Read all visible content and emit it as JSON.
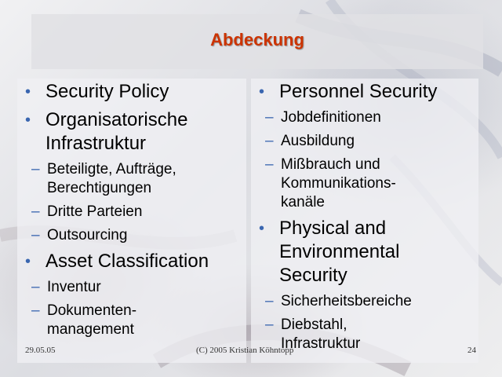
{
  "slide": {
    "title": "Abdeckung",
    "colors": {
      "title": "#cc3300",
      "bullet": "#3a66b0"
    }
  },
  "left_column": [
    {
      "text": "Security Policy",
      "subitems": []
    },
    {
      "text": "Organisatorische\nInfrastruktur",
      "subitems": [
        "Beteiligte, Aufträge,\nBerechtigungen",
        "Dritte Parteien",
        "Outsourcing"
      ]
    },
    {
      "text": "Asset Classification",
      "subitems": [
        "Inventur",
        "Dokumenten-\nmanagement"
      ]
    }
  ],
  "right_column": [
    {
      "text": "Personnel Security",
      "subitems": [
        "Jobdefinitionen",
        "Ausbildung",
        "Mißbrauch und\nKommunikations-\nkanäle"
      ]
    },
    {
      "text": "Physical and\nEnvironmental\nSecurity",
      "subitems": [
        "Sicherheitsbereiche",
        "Diebstahl,\nInfrastruktur"
      ]
    }
  ],
  "footer": {
    "date": "29.05.05",
    "copyright": "(C) 2005 Kristian Köhntopp",
    "page": "24"
  }
}
